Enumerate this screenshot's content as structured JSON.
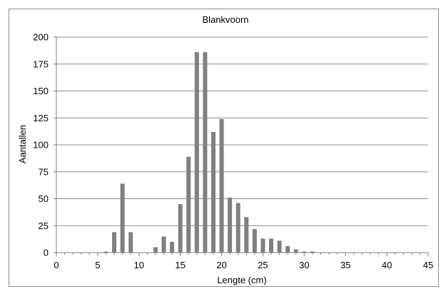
{
  "chart_data": {
    "type": "bar",
    "title": "Blankvoorn",
    "xlabel": "Lengte (cm)",
    "ylabel": "Aantallen",
    "xlim": [
      0,
      45
    ],
    "ylim": [
      0,
      200
    ],
    "x_ticks": [
      0,
      5,
      10,
      15,
      20,
      25,
      30,
      35,
      40,
      45
    ],
    "y_ticks": [
      0,
      25,
      50,
      75,
      100,
      125,
      150,
      175,
      200
    ],
    "grid": "horizontal",
    "legend": "none",
    "bar_color": "#808080",
    "x": [
      6,
      7,
      8,
      9,
      12,
      13,
      14,
      15,
      16,
      17,
      18,
      19,
      20,
      21,
      22,
      23,
      24,
      25,
      26,
      27,
      28,
      29,
      30,
      31
    ],
    "values": [
      1,
      19,
      64,
      19,
      5,
      15,
      10,
      45,
      89,
      186,
      186,
      112,
      124,
      51,
      46,
      33,
      22,
      13,
      13,
      11,
      6,
      3,
      1,
      1
    ]
  }
}
